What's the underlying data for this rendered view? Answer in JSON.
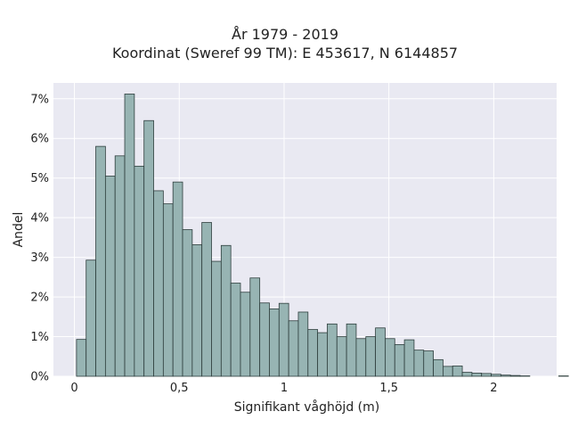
{
  "chart_data": {
    "type": "bar",
    "title_lines": [
      "År 1979 - 2019",
      "Koordinat (Sweref 99 TM): E 453617, N 6144857"
    ],
    "xlabel": "Signifikant våghöjd (m)",
    "ylabel": "Andel",
    "xlim": [
      -0.1,
      2.3
    ],
    "ylim": [
      0,
      7.4
    ],
    "x_ticks": [
      {
        "value": 0,
        "label": "0"
      },
      {
        "value": 0.5,
        "label": "0,5"
      },
      {
        "value": 1,
        "label": "1"
      },
      {
        "value": 1.5,
        "label": "1,5"
      },
      {
        "value": 2,
        "label": "2"
      }
    ],
    "y_ticks": [
      {
        "value": 0,
        "label": "0%"
      },
      {
        "value": 1,
        "label": "1%"
      },
      {
        "value": 2,
        "label": "2%"
      },
      {
        "value": 3,
        "label": "3%"
      },
      {
        "value": 4,
        "label": "4%"
      },
      {
        "value": 5,
        "label": "5%"
      },
      {
        "value": 6,
        "label": "6%"
      },
      {
        "value": 7,
        "label": "7%"
      }
    ],
    "grid": true,
    "bin_width": 0.046,
    "bin_start": 0.01,
    "values": [
      0.93,
      2.93,
      5.8,
      5.05,
      5.56,
      7.12,
      5.3,
      6.45,
      4.68,
      4.35,
      4.9,
      3.7,
      3.32,
      3.88,
      2.9,
      3.3,
      2.35,
      2.12,
      2.48,
      1.85,
      1.7,
      1.84,
      1.4,
      1.62,
      1.18,
      1.1,
      1.32,
      1.0,
      1.32,
      0.95,
      1.0,
      1.22,
      0.95,
      0.8,
      0.92,
      0.66,
      0.64,
      0.42,
      0.25,
      0.26,
      0.1,
      0.08,
      0.07,
      0.05,
      0.03,
      0.02,
      0.01,
      0.0,
      0.0,
      0.0,
      0.01
    ],
    "colors": {
      "bar_fill": "#97b4b3",
      "bar_stroke": "#2e3e3d",
      "plot_bg": "#e9e9f2",
      "grid": "#ffffff"
    }
  }
}
